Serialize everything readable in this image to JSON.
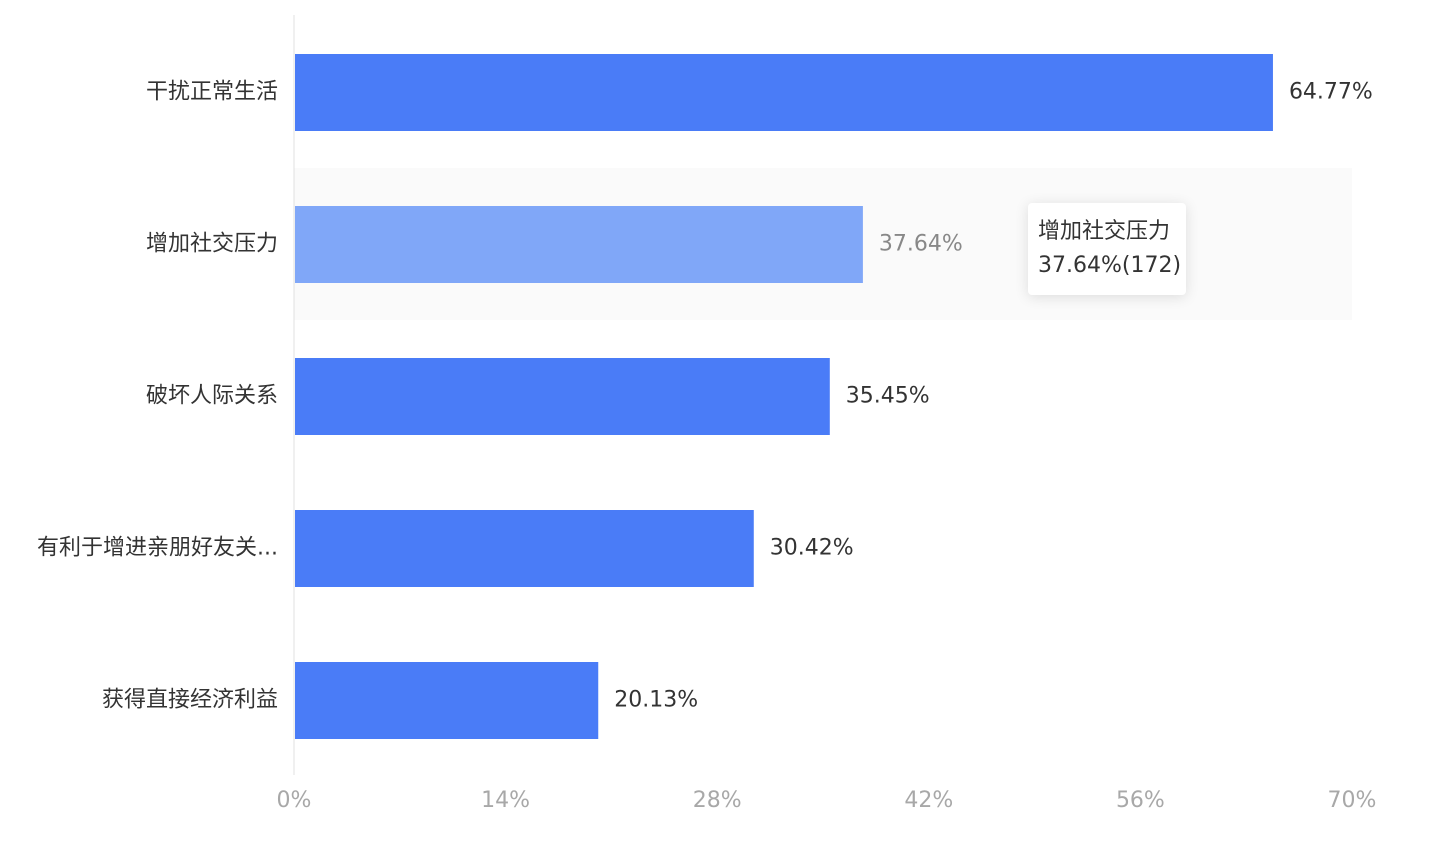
{
  "chart_data": {
    "type": "bar",
    "orientation": "horizontal",
    "categories": [
      "干扰正常生活",
      "增加社交压力",
      "破坏人际关系",
      "有利于增进亲朋好友关...",
      "获得直接经济利益"
    ],
    "values": [
      64.77,
      37.64,
      35.45,
      30.42,
      20.13
    ],
    "value_labels": [
      "64.77%",
      "37.64%",
      "35.45%",
      "30.42%",
      "20.13%"
    ],
    "x_ticks": [
      "0%",
      "14%",
      "28%",
      "42%",
      "56%",
      "70%"
    ],
    "xlim": [
      0,
      70
    ],
    "grid": false,
    "highlighted_index": 1,
    "colors": {
      "bar": "#4a7cf7",
      "bar_highlight": "#80a7f8",
      "band_highlight": "#fafafa"
    }
  },
  "tooltip": {
    "title": "增加社交压力",
    "value": "37.64%(172)"
  }
}
